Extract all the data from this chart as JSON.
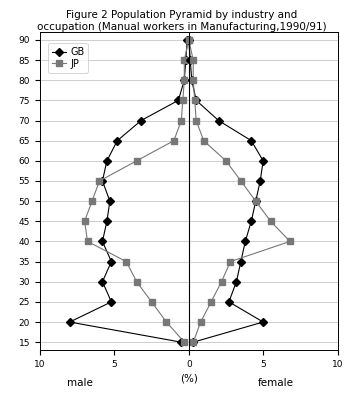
{
  "title_line1": "Figure 2 Population Pyramid by industry and",
  "title_line2": "occupation (Manual workers in Manufacturing,1990/91)",
  "ages": [
    15,
    20,
    25,
    30,
    35,
    40,
    45,
    50,
    55,
    60,
    65,
    70,
    75,
    80,
    85,
    90
  ],
  "GB_male": [
    -0.5,
    -8.0,
    -5.2,
    -5.8,
    -5.2,
    -5.8,
    -5.5,
    -5.3,
    -5.8,
    -5.5,
    -4.8,
    -3.2,
    -0.7,
    -0.3,
    -0.2,
    -0.1
  ],
  "GB_female": [
    0.3,
    5.0,
    2.7,
    3.2,
    3.5,
    3.8,
    4.2,
    4.5,
    4.8,
    5.0,
    4.2,
    2.0,
    0.5,
    0.2,
    0.1,
    0.0
  ],
  "JP_male": [
    -0.3,
    -1.5,
    -2.5,
    -3.5,
    -4.2,
    -6.8,
    -7.0,
    -6.5,
    -6.0,
    -3.5,
    -1.0,
    -0.5,
    -0.4,
    -0.3,
    -0.3,
    -0.0
  ],
  "JP_female": [
    0.3,
    0.8,
    1.5,
    2.2,
    2.8,
    6.8,
    5.5,
    4.5,
    3.5,
    2.5,
    1.0,
    0.5,
    0.4,
    0.3,
    0.3,
    0.0
  ],
  "xlim": [
    -10,
    10
  ],
  "xticks": [
    -10,
    -5,
    0,
    5,
    10
  ],
  "xticklabels": [
    "10",
    "5",
    "0",
    "5",
    "10"
  ],
  "xlabel": "(%)",
  "xlabel_male": "male",
  "xlabel_female": "female",
  "yticks": [
    15,
    20,
    25,
    30,
    35,
    40,
    45,
    50,
    55,
    60,
    65,
    70,
    75,
    80,
    85,
    90
  ],
  "line_color_GB": "#000000",
  "line_color_JP": "#777777",
  "marker_GB": "D",
  "marker_JP": "s",
  "background_color": "#ffffff",
  "grid_color": "#aaaaaa",
  "title_fontsize": 7.5,
  "tick_fontsize": 6.5,
  "label_fontsize": 7.5,
  "legend_fontsize": 7
}
